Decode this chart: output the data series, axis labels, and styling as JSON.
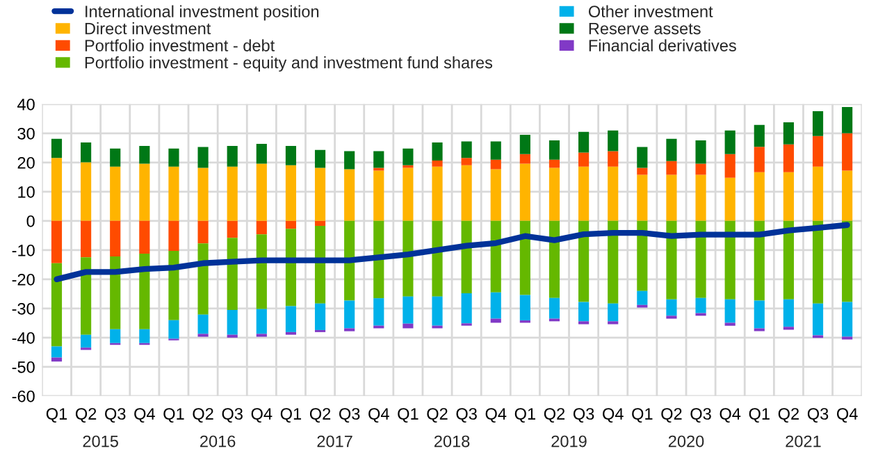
{
  "chart_data": {
    "type": "bar",
    "stacked": true,
    "categories": [
      "Q1",
      "Q2",
      "Q3",
      "Q4",
      "Q1",
      "Q2",
      "Q3",
      "Q4",
      "Q1",
      "Q2",
      "Q3",
      "Q4",
      "Q1",
      "Q2",
      "Q3",
      "Q4",
      "Q1",
      "Q2",
      "Q3",
      "Q4",
      "Q1",
      "Q2",
      "Q3",
      "Q4",
      "Q1",
      "Q2",
      "Q3",
      "Q4"
    ],
    "annotations": [
      "2015",
      "2016",
      "2017",
      "2018",
      "2019",
      "2020",
      "2021"
    ],
    "ylim": [
      -60,
      40
    ],
    "yticks": [
      -60,
      -50,
      -40,
      -30,
      -20,
      -10,
      0,
      10,
      20,
      30,
      40
    ],
    "grid": true,
    "legend": "top left",
    "series": [
      {
        "name": "International investment position",
        "type": "line",
        "color": "#003299",
        "values": [
          -20,
          -17.5,
          -17.5,
          -16.5,
          -16,
          -14.5,
          -14,
          -13.5,
          -13.5,
          -13.5,
          -13.5,
          -12.5,
          -11.5,
          -10,
          -8.5,
          -7.6,
          -5.2,
          -6.6,
          -4.6,
          -4.1,
          -4.1,
          -5.2,
          -4.7,
          -4.7,
          -4.7,
          -3.3,
          -2.4,
          -1.4
        ]
      },
      {
        "name": "Direct investment",
        "color": "#ffb400",
        "values": [
          21.6,
          20.1,
          18.6,
          19.6,
          18.6,
          18.2,
          18.6,
          19.6,
          19.1,
          18.2,
          17.7,
          17.2,
          18.2,
          18.6,
          19.1,
          17.7,
          19.6,
          18.2,
          18.6,
          18.6,
          15.8,
          15.8,
          15.8,
          14.8,
          16.7,
          16.7,
          18.6,
          17.2
        ]
      },
      {
        "name": "Portfolio investment - debt",
        "color": "#ff4b00",
        "values": [
          -14.5,
          -12.5,
          -12.2,
          -11.2,
          -10.3,
          -7.7,
          -5.8,
          -4.6,
          -2.7,
          -1.7,
          0,
          1.0,
          0.9,
          2.1,
          2.5,
          3.3,
          3.3,
          2.8,
          4.8,
          5.3,
          2.4,
          4.7,
          3.8,
          8.1,
          8.7,
          9.5,
          10.5,
          12.8
        ]
      },
      {
        "name": "Portfolio investment - equity and investment fund shares",
        "color": "#65b800",
        "values": [
          -28.5,
          -26.5,
          -24.9,
          -25.9,
          -23.7,
          -24.4,
          -24.7,
          -25.6,
          -26.5,
          -26.6,
          -27.3,
          -26.5,
          -25.9,
          -25.9,
          -24.8,
          -24.5,
          -25.4,
          -26.4,
          -27.8,
          -28.3,
          -24.0,
          -26.9,
          -26.4,
          -26.9,
          -27.3,
          -26.9,
          -28.3,
          -27.8
        ]
      },
      {
        "name": "Other investment",
        "color": "#00b1ea",
        "values": [
          -3.8,
          -4.4,
          -4.8,
          -4.8,
          -6.4,
          -6.6,
          -8.5,
          -8.5,
          -8.9,
          -9.1,
          -9.5,
          -9.4,
          -9.3,
          -10,
          -10.3,
          -9.0,
          -8.7,
          -7.1,
          -6.6,
          -6.1,
          -4.8,
          -5.6,
          -5.2,
          -8.0,
          -9.5,
          -9.4,
          -10.9,
          -11.9
        ]
      },
      {
        "name": "Reserve assets",
        "color": "#007816",
        "values": [
          6.5,
          6.8,
          6.2,
          6.1,
          6.2,
          7.1,
          7.1,
          6.8,
          6.6,
          6.1,
          6.2,
          5.7,
          5.7,
          6.2,
          5.6,
          6.2,
          6.6,
          6.6,
          7.1,
          7.1,
          7.1,
          7.6,
          8.0,
          8.1,
          7.5,
          7.6,
          8.5,
          9.0
        ]
      },
      {
        "name": "Financial derivatives",
        "color": "#8139c6",
        "values": [
          -1.4,
          -0.8,
          -0.6,
          -0.6,
          -0.5,
          -1.0,
          -1.0,
          -1.0,
          -0.9,
          -0.7,
          -1.0,
          -0.9,
          -1.6,
          -0.9,
          -0.8,
          -1.4,
          -0.8,
          -0.9,
          -1.0,
          -1.0,
          -0.9,
          -1.0,
          -0.9,
          -1.0,
          -1.0,
          -1.0,
          -0.9,
          -0.9
        ]
      }
    ]
  }
}
